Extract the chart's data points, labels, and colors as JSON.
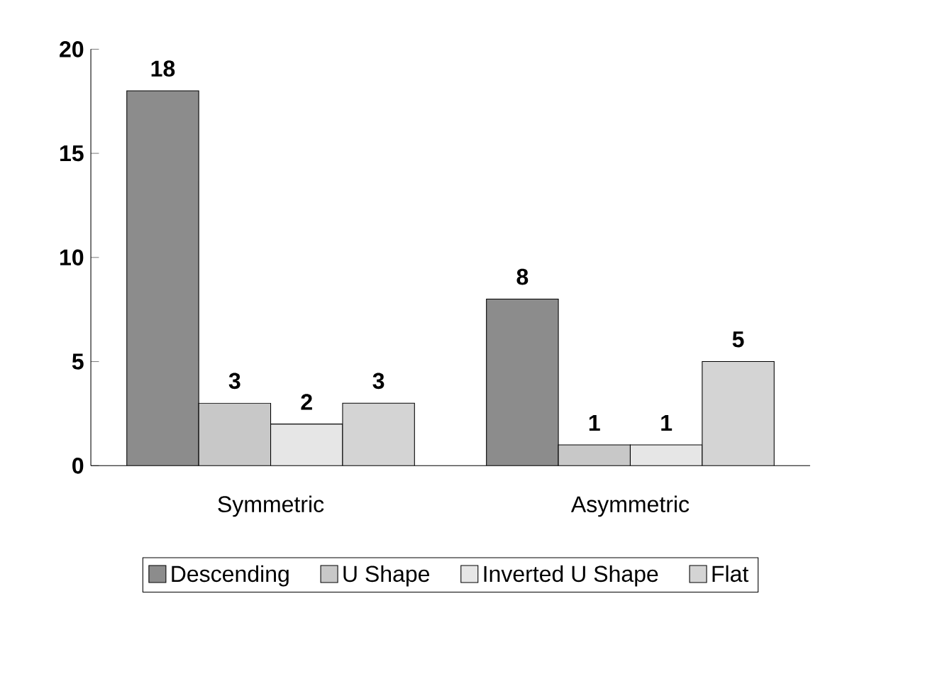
{
  "chart_data": {
    "type": "bar",
    "categories": [
      "Symmetric",
      "Asymmetric"
    ],
    "series": [
      {
        "name": "Descending",
        "color": "#8c8c8c",
        "values": [
          18,
          8
        ]
      },
      {
        "name": "U Shape",
        "color": "#c8c8c8",
        "values": [
          3,
          1
        ]
      },
      {
        "name": "Inverted U Shape",
        "color": "#e6e6e6",
        "values": [
          2,
          1
        ]
      },
      {
        "name": "Flat",
        "color": "#d4d4d4",
        "values": [
          3,
          5
        ]
      }
    ],
    "ylim": [
      0,
      20
    ],
    "yticks": [
      0,
      5,
      10,
      15,
      20
    ],
    "data_labels": true,
    "legend": "bottom",
    "grid": false
  }
}
